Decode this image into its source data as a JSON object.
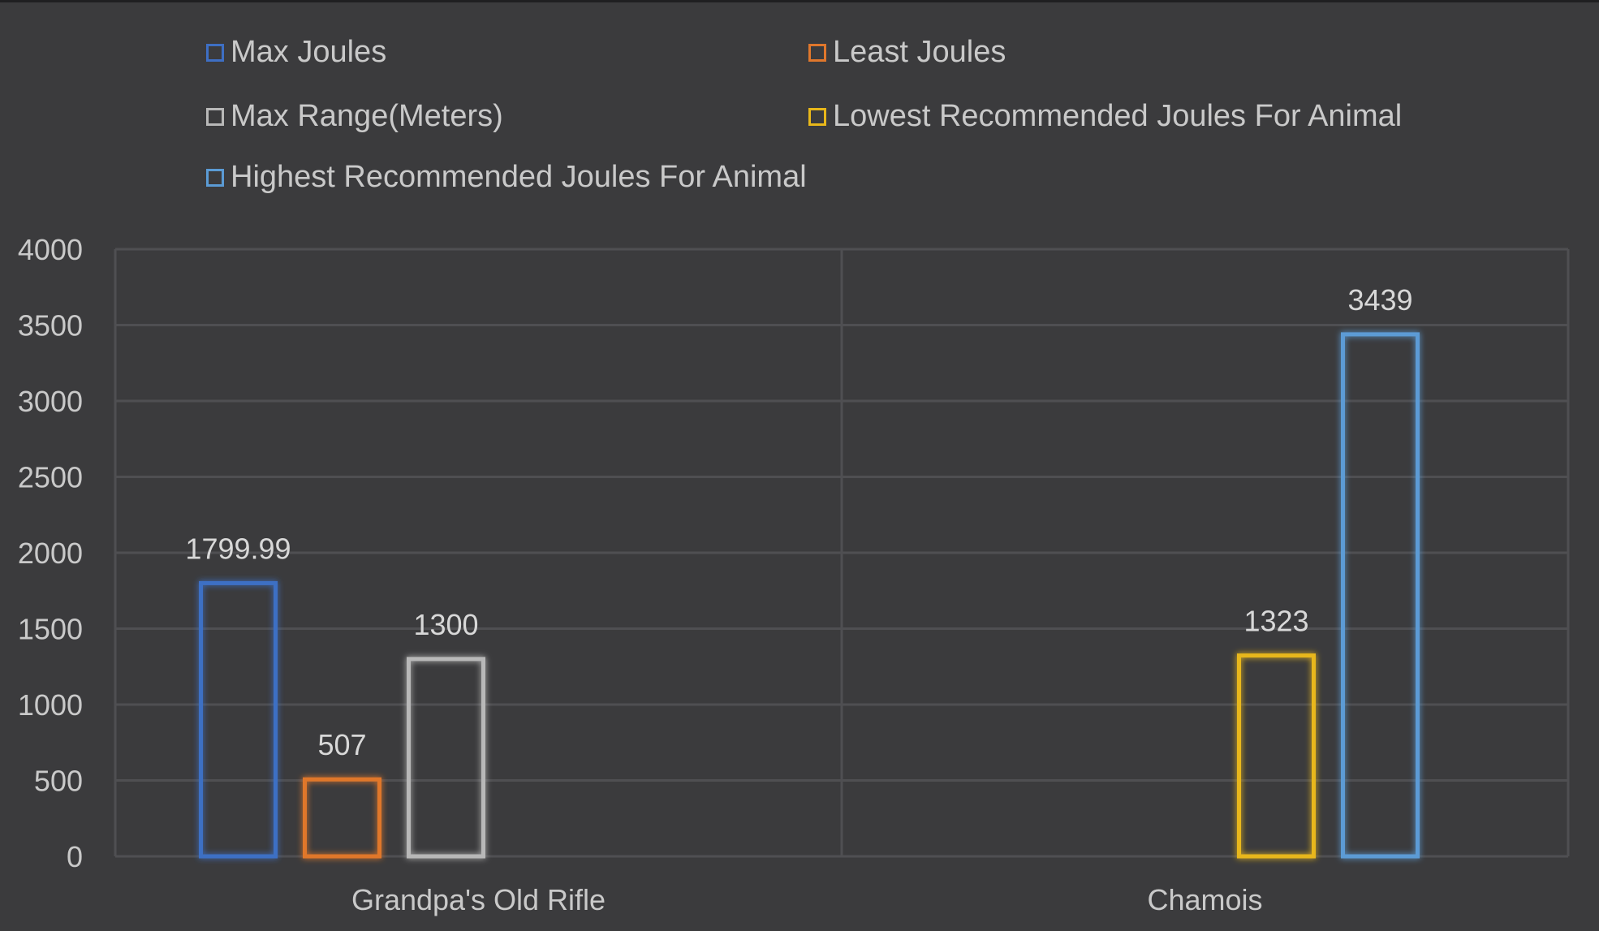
{
  "chart_data": {
    "type": "bar",
    "categories": [
      "Grandpa's Old Rifle",
      "Chamois"
    ],
    "series": [
      {
        "name": "Max Joules",
        "values": [
          1799.99,
          null
        ],
        "color": "#3e6fc4"
      },
      {
        "name": "Least Joules",
        "values": [
          507,
          null
        ],
        "color": "#e0772c"
      },
      {
        "name": "Max Range(Meters)",
        "values": [
          1300,
          null
        ],
        "color": "#b8b8b8"
      },
      {
        "name": "Lowest Recommended Joules For Animal",
        "values": [
          null,
          1323
        ],
        "color": "#e8b71a"
      },
      {
        "name": "Highest Recommended Joules For Animal",
        "values": [
          null,
          3439
        ],
        "color": "#5b9bd5"
      }
    ],
    "data_labels": [
      {
        "series": 0,
        "category": 0,
        "text": "1799.99"
      },
      {
        "series": 1,
        "category": 0,
        "text": "507"
      },
      {
        "series": 2,
        "category": 0,
        "text": "1300"
      },
      {
        "series": 3,
        "category": 1,
        "text": "1323"
      },
      {
        "series": 4,
        "category": 1,
        "text": "3439"
      }
    ],
    "yticks": [
      "0",
      "500",
      "1000",
      "1500",
      "2000",
      "2500",
      "3000",
      "3500",
      "4000"
    ],
    "ylim": [
      0,
      4000
    ],
    "grid": true,
    "legend_position": "top",
    "title": "",
    "xlabel": "",
    "ylabel": ""
  }
}
